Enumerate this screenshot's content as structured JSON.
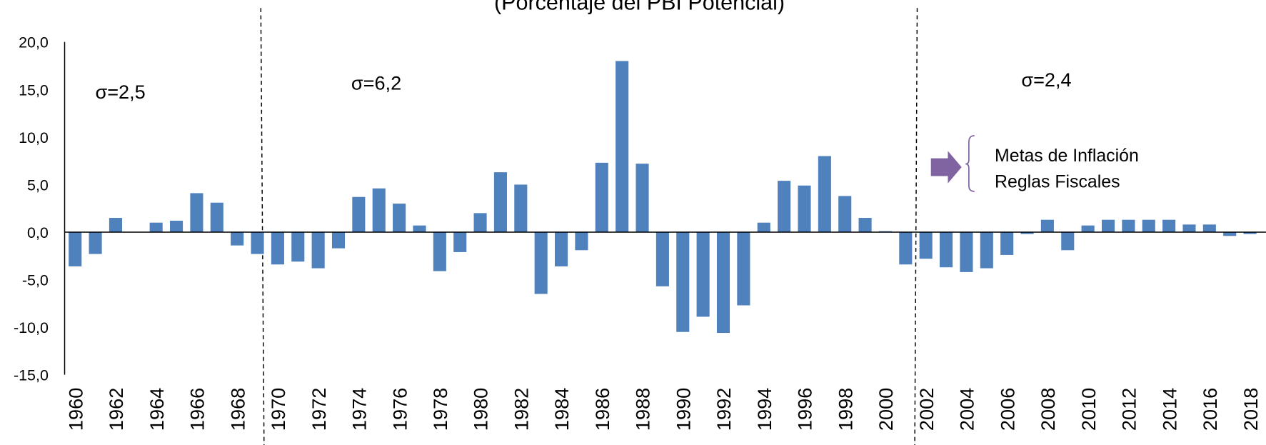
{
  "chart_data": {
    "type": "bar",
    "title": "(Porcentaje del PBI Potencial)",
    "categories": [
      "1960",
      null,
      "1962",
      null,
      "1964",
      null,
      "1966",
      null,
      "1968",
      null,
      "1970",
      null,
      "1972",
      null,
      "1974",
      null,
      "1976",
      null,
      "1978",
      null,
      "1980",
      null,
      "1982",
      null,
      "1984",
      null,
      "1986",
      null,
      "1988",
      null,
      "1990",
      null,
      "1992",
      null,
      "1994",
      null,
      "1996",
      null,
      "1998",
      null,
      "2000",
      null,
      "2002",
      null,
      "2004",
      null,
      "2006",
      null,
      "2008",
      null,
      "2010",
      null,
      "2012",
      null,
      "2014",
      null,
      "2016",
      null,
      "2018"
    ],
    "values": [
      -3.6,
      -2.3,
      1.5,
      0.0,
      1.0,
      1.2,
      4.1,
      3.1,
      -1.4,
      -2.3,
      -3.4,
      -3.1,
      -3.8,
      -1.7,
      3.7,
      4.6,
      3.0,
      0.7,
      -4.1,
      -2.1,
      2.0,
      6.3,
      5.0,
      -6.5,
      -3.6,
      -1.9,
      7.3,
      18.0,
      7.2,
      -5.7,
      -10.5,
      -8.9,
      -10.6,
      -7.7,
      1.0,
      5.4,
      4.9,
      8.0,
      3.8,
      1.5,
      0.1,
      -3.4,
      -2.8,
      -3.7,
      -4.2,
      -3.8,
      -2.4,
      -0.2,
      1.3,
      -1.9,
      0.7,
      1.3,
      1.3,
      1.3,
      1.3,
      0.8,
      0.8,
      -0.4,
      -0.2
    ],
    "color": "#4f81bd",
    "ylim": [
      -15,
      20
    ],
    "yticks": [
      {
        "value": -15,
        "label": "-15,0"
      },
      {
        "value": -10,
        "label": "-10,0"
      },
      {
        "value": -5,
        "label": "-5,0"
      },
      {
        "value": 0,
        "label": "0,0"
      },
      {
        "value": 5,
        "label": "5,0"
      },
      {
        "value": 10,
        "label": "10,0"
      },
      {
        "value": 15,
        "label": "15,0"
      },
      {
        "value": 20,
        "label": "20,0"
      }
    ],
    "grid": false,
    "annotations": [
      "σ=2,5",
      "σ=6,2",
      "σ=2,4",
      "Metas de Inflación",
      "Reglas Fiscales"
    ]
  }
}
